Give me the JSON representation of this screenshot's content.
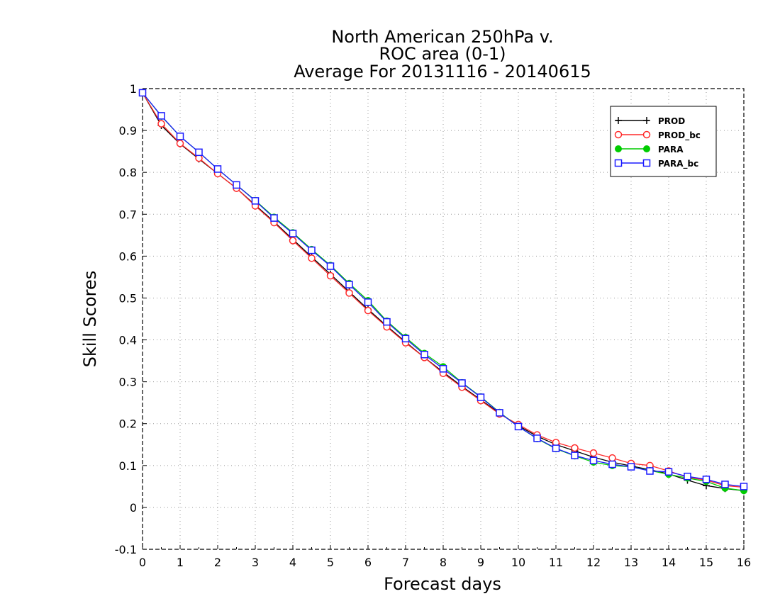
{
  "chart_data": {
    "type": "line",
    "title_lines": [
      "North American 250hPa v.",
      "ROC area (0-1)",
      "Average For 20131116 - 20140615"
    ],
    "xlabel": "Forecast days",
    "ylabel": "Skill Scores",
    "xlim": [
      0,
      16
    ],
    "ylim": [
      -0.1,
      1
    ],
    "x_ticks": [
      0,
      1,
      2,
      3,
      4,
      5,
      6,
      7,
      8,
      9,
      10,
      11,
      12,
      13,
      14,
      15,
      16
    ],
    "y_ticks": [
      -0.1,
      0,
      0.1,
      0.2,
      0.3,
      0.4,
      0.5,
      0.6,
      0.7,
      0.8,
      0.9,
      1
    ],
    "y_tick_labels": [
      "-0.1",
      "0",
      "0.1",
      "0.2",
      "0.3",
      "0.4",
      "0.5",
      "0.6",
      "0.7",
      "0.8",
      "0.9",
      "1"
    ],
    "grid": true,
    "legend_position": "top-right",
    "x": [
      0,
      0.5,
      1,
      1.5,
      2,
      2.5,
      3,
      3.5,
      4,
      4.5,
      5,
      5.5,
      6,
      6.5,
      7,
      7.5,
      8,
      8.5,
      9,
      9.5,
      10,
      10.5,
      11,
      11.5,
      12,
      12.5,
      13,
      13.5,
      14,
      14.5,
      15,
      15.5,
      16
    ],
    "series": [
      {
        "name": "PROD",
        "color": "#000000",
        "marker": "cross",
        "values": [
          0.99,
          0.912,
          0.868,
          0.832,
          0.797,
          0.762,
          0.722,
          0.682,
          0.64,
          0.598,
          0.557,
          0.515,
          0.473,
          0.433,
          0.395,
          0.358,
          0.323,
          0.289,
          0.257,
          0.225,
          0.195,
          0.17,
          0.15,
          0.135,
          0.12,
          0.108,
          0.099,
          0.09,
          0.08,
          0.065,
          0.052,
          0.045,
          0.04
        ]
      },
      {
        "name": "PROD_bc",
        "color": "#ff2a2a",
        "marker": "circle-open",
        "values": [
          0.99,
          0.916,
          0.869,
          0.834,
          0.797,
          0.762,
          0.72,
          0.68,
          0.637,
          0.595,
          0.553,
          0.512,
          0.47,
          0.431,
          0.393,
          0.358,
          0.32,
          0.287,
          0.255,
          0.223,
          0.198,
          0.173,
          0.155,
          0.142,
          0.13,
          0.118,
          0.105,
          0.1,
          0.087,
          0.072,
          0.065,
          0.052,
          0.048
        ]
      },
      {
        "name": "PARA",
        "color": "#00cc00",
        "marker": "circle-filled",
        "values": [
          0.99,
          0.934,
          0.886,
          0.848,
          0.808,
          0.77,
          0.733,
          0.693,
          0.656,
          0.616,
          0.578,
          0.535,
          0.494,
          0.445,
          0.406,
          0.368,
          0.336,
          0.298,
          0.264,
          0.227,
          0.193,
          0.164,
          0.14,
          0.123,
          0.108,
          0.1,
          0.097,
          0.088,
          0.079,
          0.07,
          0.062,
          0.046,
          0.04
        ]
      },
      {
        "name": "PARA_bc",
        "color": "#1a1aff",
        "marker": "square-open",
        "values": [
          0.99,
          0.935,
          0.886,
          0.848,
          0.808,
          0.77,
          0.732,
          0.691,
          0.654,
          0.614,
          0.576,
          0.532,
          0.49,
          0.443,
          0.403,
          0.365,
          0.331,
          0.297,
          0.263,
          0.226,
          0.193,
          0.165,
          0.141,
          0.124,
          0.112,
          0.103,
          0.097,
          0.087,
          0.085,
          0.074,
          0.067,
          0.055,
          0.05
        ]
      }
    ]
  }
}
